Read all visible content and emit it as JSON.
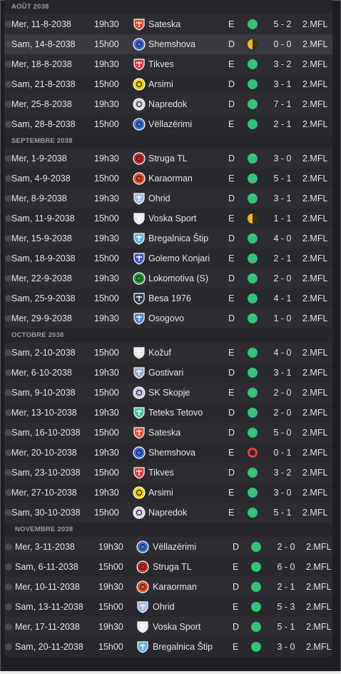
{
  "colors": {
    "win": "#35c27a",
    "draw": "#f2b51c",
    "loss": "#e0453d"
  },
  "months": [
    {
      "title": "AOÛT 2038",
      "matches": [
        {
          "date": "Mer, 11-8-2038",
          "time": "19h30",
          "opponent": "Sateska",
          "crest": "shield",
          "crest_color": "#e64a2e",
          "venue": "E",
          "result": "win",
          "score": "5 - 2",
          "comp": "2.MFL"
        },
        {
          "date": "Sam, 14-8-2038",
          "time": "15h00",
          "opponent": "Shemshova",
          "crest": "round",
          "crest_color": "#3f6ad8",
          "venue": "D",
          "result": "draw",
          "score": "0 - 0",
          "comp": "2.MFL"
        },
        {
          "date": "Mer, 18-8-2038",
          "time": "19h30",
          "opponent": "Tikves",
          "crest": "shield",
          "crest_color": "#e23b3b",
          "venue": "E",
          "result": "win",
          "score": "3 - 2",
          "comp": "2.MFL"
        },
        {
          "date": "Sam, 21-8-2038",
          "time": "15h00",
          "opponent": "Arsimi",
          "crest": "round",
          "crest_color": "#f0d000",
          "venue": "D",
          "result": "win",
          "score": "3 - 1",
          "comp": "2.MFL"
        },
        {
          "date": "Mer, 25-8-2038",
          "time": "19h30",
          "opponent": "Napredok",
          "crest": "round",
          "crest_color": "#d8d8e8",
          "venue": "D",
          "result": "win",
          "score": "7 - 1",
          "comp": "2.MFL"
        },
        {
          "date": "Sam, 28-8-2038",
          "time": "15h00",
          "opponent": "Vëllazërimi",
          "crest": "round",
          "crest_color": "#3b74d6",
          "venue": "E",
          "result": "win",
          "score": "2 - 1",
          "comp": "2.MFL"
        }
      ]
    },
    {
      "title": "SEPTEMBRE 2038",
      "matches": [
        {
          "date": "Mer, 1-9-2038",
          "time": "19h30",
          "opponent": "Struga TL",
          "crest": "round",
          "crest_color": "#c0282d",
          "venue": "D",
          "result": "win",
          "score": "3 - 0",
          "comp": "2.MFL"
        },
        {
          "date": "Sam, 4-9-2038",
          "time": "15h00",
          "opponent": "Karaorman",
          "crest": "round",
          "crest_color": "#e84a2a",
          "venue": "E",
          "result": "win",
          "score": "5 - 1",
          "comp": "2.MFL"
        },
        {
          "date": "Mer, 8-9-2038",
          "time": "19h30",
          "opponent": "Ohrid",
          "crest": "shield",
          "crest_color": "#9fb6ea",
          "venue": "D",
          "result": "win",
          "score": "3 - 1",
          "comp": "2.MFL"
        },
        {
          "date": "Sam, 11-9-2038",
          "time": "15h00",
          "opponent": "Voska Sport",
          "crest": "shield",
          "crest_color": "#e8e8f0",
          "venue": "E",
          "result": "draw",
          "score": "1 - 1",
          "comp": "2.MFL"
        },
        {
          "date": "Mer, 15-9-2038",
          "time": "19h30",
          "opponent": "Bregalnica Štip",
          "crest": "shield",
          "crest_color": "#5fb0e0",
          "venue": "D",
          "result": "win",
          "score": "4 - 0",
          "comp": "2.MFL"
        },
        {
          "date": "Sam, 18-9-2038",
          "time": "15h00",
          "opponent": "Golemo Konjari",
          "crest": "shield",
          "crest_color": "#3a56c8",
          "venue": "E",
          "result": "win",
          "score": "2 - 1",
          "comp": "2.MFL"
        },
        {
          "date": "Mer, 22-9-2038",
          "time": "19h30",
          "opponent": "Lokomotiva (S)",
          "crest": "round",
          "crest_color": "#1e9a3a",
          "venue": "D",
          "result": "win",
          "score": "2 - 0",
          "comp": "2.MFL"
        },
        {
          "date": "Sam, 25-9-2038",
          "time": "15h00",
          "opponent": "Besa 1976",
          "crest": "shield",
          "crest_color": "#28384e",
          "venue": "E",
          "result": "win",
          "score": "4 - 1",
          "comp": "2.MFL"
        },
        {
          "date": "Mer, 29-9-2038",
          "time": "19h30",
          "opponent": "Osogovo",
          "crest": "shield",
          "crest_color": "#4a86c8",
          "venue": "D",
          "result": "win",
          "score": "1 - 0",
          "comp": "2.MFL"
        }
      ]
    },
    {
      "title": "OCTOBRE 2038",
      "matches": [
        {
          "date": "Sam, 2-10-2038",
          "time": "15h00",
          "opponent": "Kožuf",
          "crest": "shield",
          "crest_color": "#e8e8e8",
          "venue": "E",
          "result": "win",
          "score": "4 - 0",
          "comp": "2.MFL"
        },
        {
          "date": "Mer, 6-10-2038",
          "time": "19h30",
          "opponent": "Gostivari",
          "crest": "shield",
          "crest_color": "#8fa8c8",
          "venue": "D",
          "result": "win",
          "score": "3 - 1",
          "comp": "2.MFL"
        },
        {
          "date": "Sam, 9-10-2038",
          "time": "15h00",
          "opponent": "SK Skopje",
          "crest": "round",
          "crest_color": "#c8c8e0",
          "venue": "E",
          "result": "win",
          "score": "2 - 0",
          "comp": "2.MFL"
        },
        {
          "date": "Mer, 13-10-2038",
          "time": "19h30",
          "opponent": "Teteks Tetovo",
          "crest": "shield",
          "crest_color": "#3fc8a0",
          "venue": "D",
          "result": "win",
          "score": "2 - 0",
          "comp": "2.MFL"
        },
        {
          "date": "Sam, 16-10-2038",
          "time": "15h00",
          "opponent": "Sateska",
          "crest": "shield",
          "crest_color": "#e64a2e",
          "venue": "D",
          "result": "win",
          "score": "5 - 0",
          "comp": "2.MFL"
        },
        {
          "date": "Mer, 20-10-2038",
          "time": "19h30",
          "opponent": "Shemshova",
          "crest": "round",
          "crest_color": "#3f6ad8",
          "venue": "E",
          "result": "loss",
          "score": "0 - 1",
          "comp": "2.MFL"
        },
        {
          "date": "Sam, 23-10-2038",
          "time": "15h00",
          "opponent": "Tikves",
          "crest": "shield",
          "crest_color": "#e23b3b",
          "venue": "D",
          "result": "win",
          "score": "3 - 2",
          "comp": "2.MFL"
        },
        {
          "date": "Mer, 27-10-2038",
          "time": "19h30",
          "opponent": "Arsimi",
          "crest": "round",
          "crest_color": "#f0d000",
          "venue": "E",
          "result": "win",
          "score": "3 - 0",
          "comp": "2.MFL"
        },
        {
          "date": "Sam, 30-10-2038",
          "time": "15h00",
          "opponent": "Napredok",
          "crest": "round",
          "crest_color": "#d8d8e8",
          "venue": "E",
          "result": "win",
          "score": "5 - 1",
          "comp": "2.MFL"
        }
      ]
    },
    {
      "title": "NOVEMBRE 2038",
      "matches": [
        {
          "date": "Mer, 3-11-2038",
          "time": "19h30",
          "opponent": "Vëllazërimi",
          "crest": "round",
          "crest_color": "#3b74d6",
          "venue": "D",
          "result": "win",
          "score": "2 - 0",
          "comp": "2.MFL"
        },
        {
          "date": "Sam, 6-11-2038",
          "time": "15h00",
          "opponent": "Struga TL",
          "crest": "round",
          "crest_color": "#c0282d",
          "venue": "E",
          "result": "win",
          "score": "6 - 0",
          "comp": "2.MFL"
        },
        {
          "date": "Mer, 10-11-2038",
          "time": "19h30",
          "opponent": "Karaorman",
          "crest": "round",
          "crest_color": "#e84a2a",
          "venue": "D",
          "result": "win",
          "score": "2 - 1",
          "comp": "2.MFL"
        },
        {
          "date": "Sam, 13-11-2038",
          "time": "15h00",
          "opponent": "Ohrid",
          "crest": "shield",
          "crest_color": "#9fb6ea",
          "venue": "E",
          "result": "win",
          "score": "5 - 3",
          "comp": "2.MFL"
        },
        {
          "date": "Mer, 17-11-2038",
          "time": "19h30",
          "opponent": "Voska Sport",
          "crest": "shield",
          "crest_color": "#e8e8f0",
          "venue": "D",
          "result": "win",
          "score": "5 - 1",
          "comp": "2.MFL"
        },
        {
          "date": "Sam, 20-11-2038",
          "time": "15h00",
          "opponent": "Bregalnica Štip",
          "crest": "shield",
          "crest_color": "#5fb0e0",
          "venue": "E",
          "result": "win",
          "score": "3 - 0",
          "comp": "2.MFL"
        }
      ]
    }
  ]
}
